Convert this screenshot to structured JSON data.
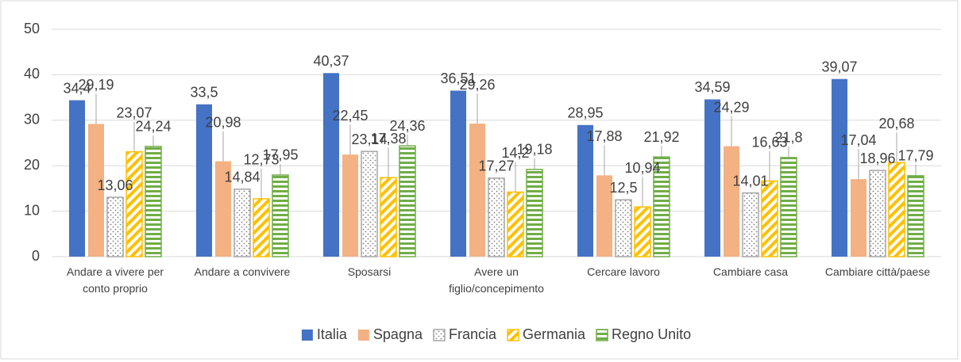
{
  "chart_data": {
    "type": "bar",
    "categories": [
      "Andare a vivere per conto proprio",
      "Andare a convivere",
      "Sposarsi",
      "Avere un figlio/concepimento",
      "Cercare lavoro",
      "Cambiare casa",
      "Cambiare città/paese"
    ],
    "series": [
      {
        "name": "Italia",
        "color": "#4472c4",
        "pattern": "solid",
        "values": [
          34.4,
          33.5,
          40.37,
          36.51,
          28.95,
          34.59,
          39.07
        ],
        "value_labels": [
          "34,4",
          "33,5",
          "40,37",
          "36,51",
          "28,95",
          "34,59",
          "39,07"
        ]
      },
      {
        "name": "Spagna",
        "color": "#f4b183",
        "pattern": "solid",
        "values": [
          29.19,
          20.98,
          22.45,
          29.26,
          17.88,
          24.29,
          17.04
        ],
        "value_labels": [
          "29,19",
          "20,98",
          "22,45",
          "29,26",
          "17,88",
          "24,29",
          "17,04"
        ]
      },
      {
        "name": "Francia",
        "color": "#a5a5a5",
        "pattern": "dots",
        "values": [
          13.06,
          14.84,
          23.14,
          17.27,
          12.5,
          14.01,
          18.96
        ],
        "value_labels": [
          "13,06",
          "14,84",
          "23,14",
          "17,27",
          "12,5",
          "14,01",
          "18,96"
        ]
      },
      {
        "name": "Germania",
        "color": "#ffc000",
        "pattern": "diagonal",
        "values": [
          23.07,
          12.73,
          17.38,
          14.2,
          10.94,
          16.63,
          20.68
        ],
        "value_labels": [
          "23,07",
          "12,73",
          "17,38",
          "14,2",
          "10,94",
          "16,63",
          "20,68"
        ]
      },
      {
        "name": "Regno Unito",
        "color": "#70ad47",
        "pattern": "horizontal",
        "values": [
          24.24,
          17.95,
          24.36,
          19.18,
          21.92,
          21.8,
          17.79
        ],
        "value_labels": [
          "24,24",
          "17,95",
          "24,36",
          "19,18",
          "21,92",
          "21,8",
          "17,79"
        ]
      }
    ],
    "ylim": [
      0,
      50
    ],
    "yticks": [
      0,
      10,
      20,
      30,
      40,
      50
    ],
    "grid": true,
    "legend": "bottom"
  }
}
